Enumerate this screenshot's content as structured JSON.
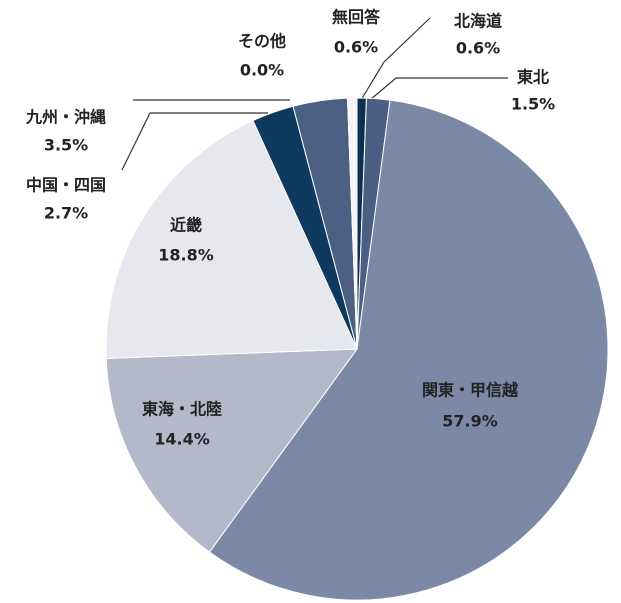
{
  "chart_data": {
    "type": "pie",
    "categories": [
      "北海道",
      "東北",
      "関東・甲信越",
      "東海・北陸",
      "近畿",
      "中国・四国",
      "九州・沖縄",
      "その他",
      "無回答"
    ],
    "values": [
      0.6,
      1.5,
      57.9,
      14.4,
      18.8,
      2.7,
      3.5,
      0.0,
      0.6
    ],
    "value_labels": [
      "0.6%",
      "1.5%",
      "57.9%",
      "14.4%",
      "18.8%",
      "2.7%",
      "3.5%",
      "0.0%",
      "0.6%"
    ],
    "colors": [
      "#0e2f52",
      "#4b5f84",
      "#7b89a7",
      "#b4b8cb",
      "#e7e8ee",
      "#0d3a5e",
      "#4c6084",
      "#ffffff",
      "#f4f4f7"
    ]
  }
}
